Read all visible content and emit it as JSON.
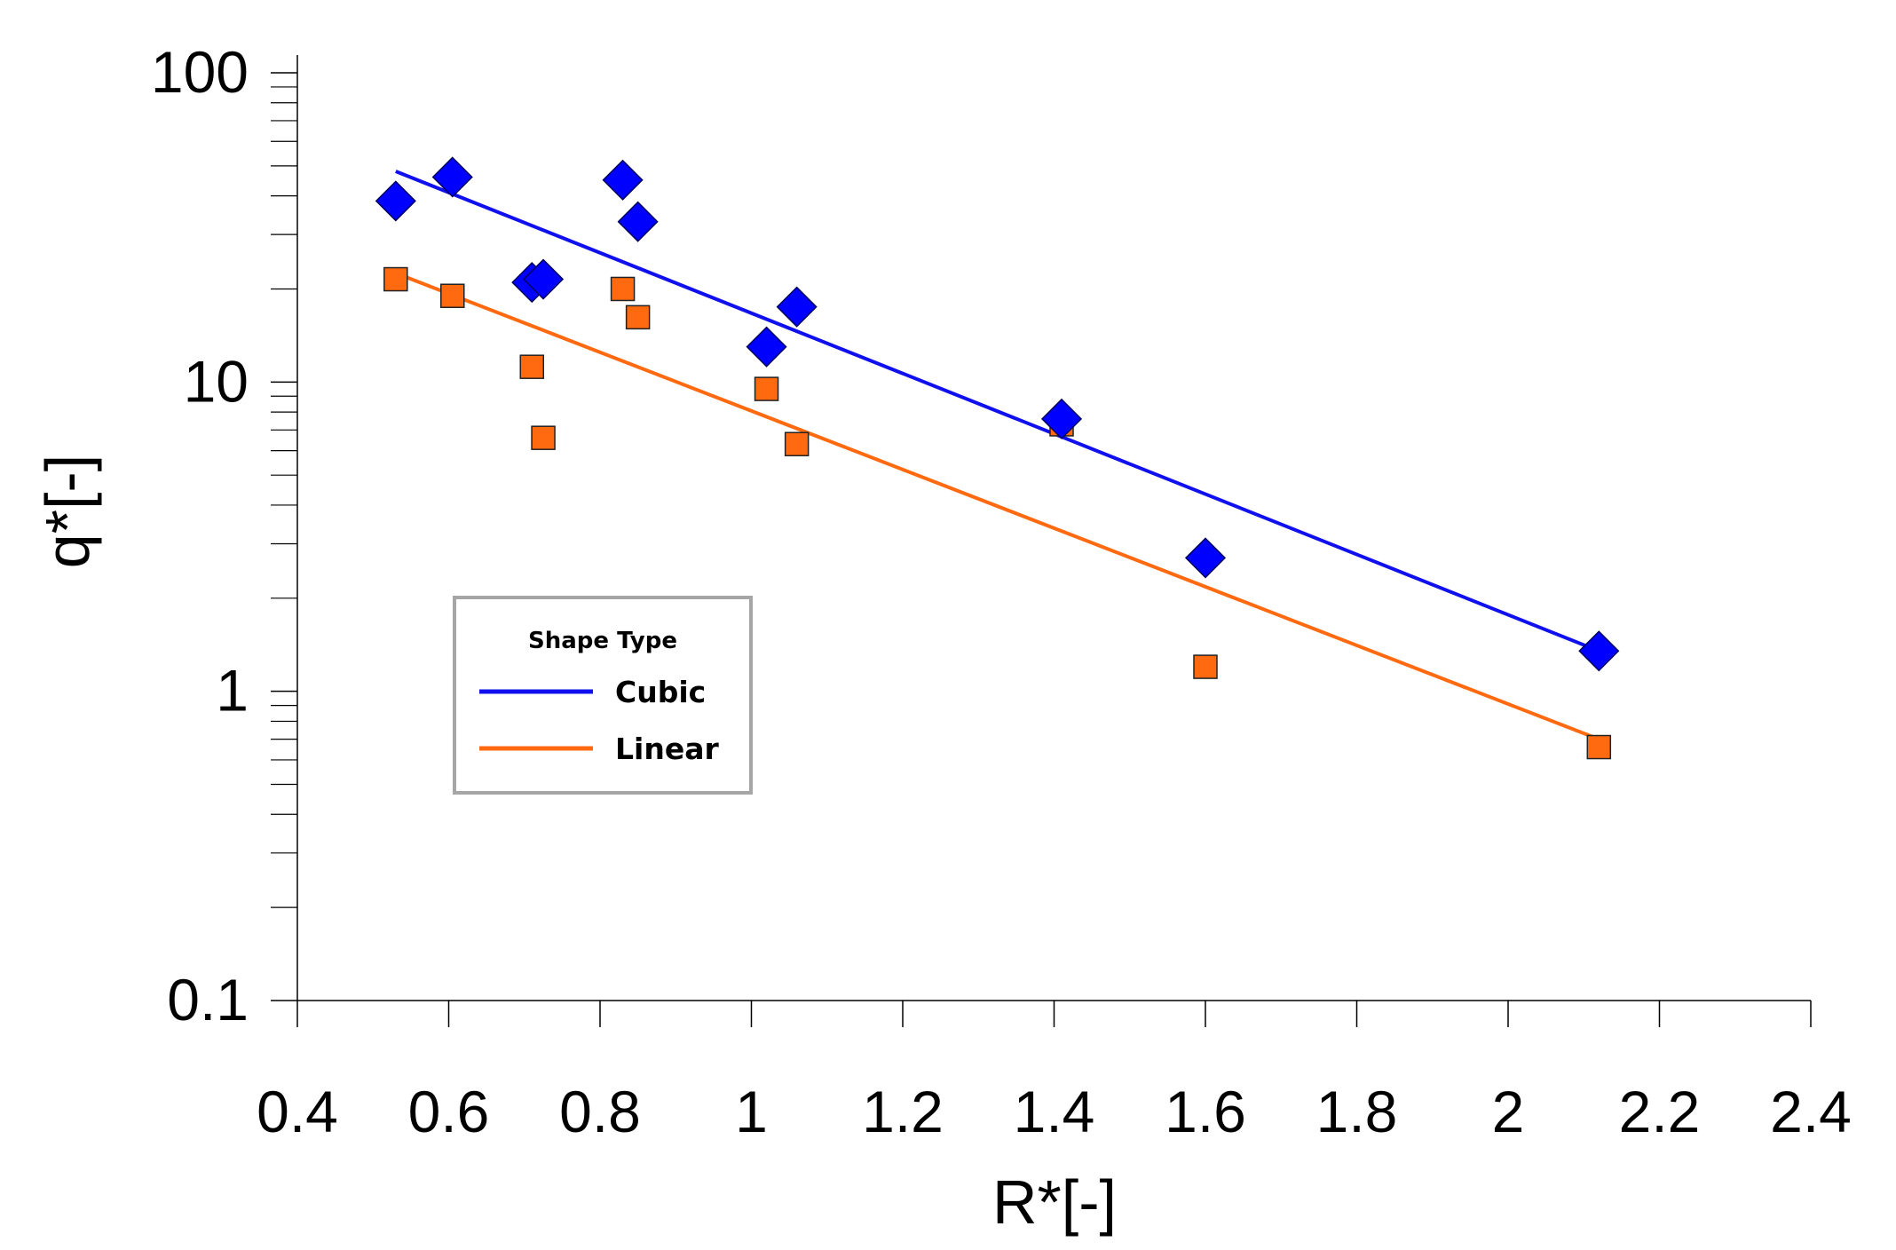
{
  "chart_data": {
    "type": "scatter",
    "title": "",
    "xlabel": "R*[-]",
    "ylabel": "q*[-]",
    "xlim": [
      0.4,
      2.4
    ],
    "ylim": [
      0.1,
      100
    ],
    "yscale": "log",
    "grid": false,
    "x_ticks": [
      "0.4",
      "0.6",
      "0.8",
      "1",
      "1.2",
      "1.4",
      "1.6",
      "1.8",
      "2",
      "2.2",
      "2.4"
    ],
    "y_ticks": [
      "0.1",
      "1",
      "10",
      "100"
    ],
    "legend": {
      "title": "Shape Type",
      "position": "lower-left",
      "entries": [
        "Cubic",
        "Linear"
      ]
    },
    "series": [
      {
        "name": "Cubic",
        "marker": "diamond",
        "color": "#0000ff",
        "line_color": "#1010ee",
        "points": [
          [
            0.53,
            38.5
          ],
          [
            0.605,
            46
          ],
          [
            0.71,
            21
          ],
          [
            0.725,
            21.5
          ],
          [
            0.83,
            45
          ],
          [
            0.85,
            33
          ],
          [
            1.02,
            13
          ],
          [
            1.06,
            17.5
          ],
          [
            1.41,
            7.6
          ],
          [
            1.6,
            2.7
          ],
          [
            2.12,
            1.35
          ]
        ],
        "trend": [
          [
            0.53,
            48
          ],
          [
            2.12,
            1.35
          ]
        ]
      },
      {
        "name": "Linear",
        "marker": "square",
        "color": "#ff6a10",
        "line_color": "#ff6a10",
        "points": [
          [
            0.53,
            21.5
          ],
          [
            0.605,
            19
          ],
          [
            0.71,
            11.2
          ],
          [
            0.725,
            6.6
          ],
          [
            0.83,
            20
          ],
          [
            0.85,
            16.2
          ],
          [
            1.02,
            9.5
          ],
          [
            1.06,
            6.3
          ],
          [
            1.41,
            7.3
          ],
          [
            1.6,
            1.2
          ],
          [
            2.12,
            0.66
          ]
        ],
        "trend": [
          [
            0.53,
            22.5
          ],
          [
            2.12,
            0.7
          ]
        ]
      }
    ]
  }
}
